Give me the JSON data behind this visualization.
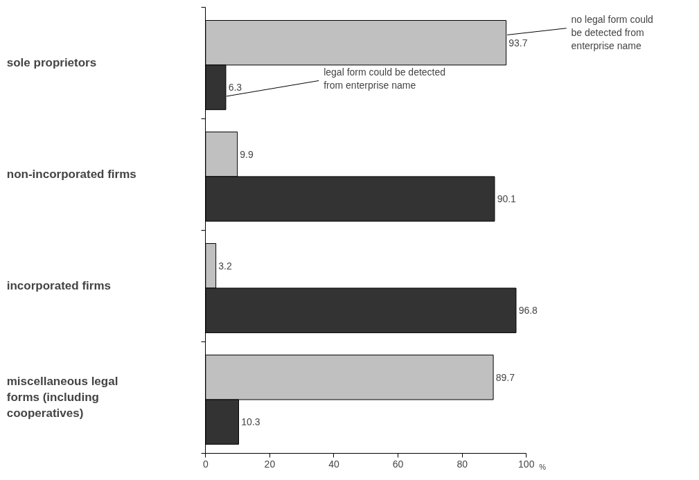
{
  "chart_data": {
    "type": "bar",
    "orientation": "horizontal",
    "categories": [
      "sole proprietors",
      "non-incorporated firms",
      "incorporated firms",
      "miscellaneous legal forms (including cooperatives)"
    ],
    "series": [
      {
        "name": "no legal form could be detected from enterprise name",
        "color": "#c0c0c0",
        "values": [
          93.7,
          9.9,
          3.2,
          89.7
        ]
      },
      {
        "name": "legal form could be detected from enterprise name",
        "color": "#333333",
        "values": [
          6.3,
          90.1,
          96.8,
          10.3
        ]
      }
    ],
    "xlim": [
      0,
      100
    ],
    "xticks": [
      0,
      20,
      40,
      60,
      80,
      100
    ],
    "xlabel": "%",
    "data_labels": true,
    "grid": false,
    "tick_labels": "x"
  }
}
